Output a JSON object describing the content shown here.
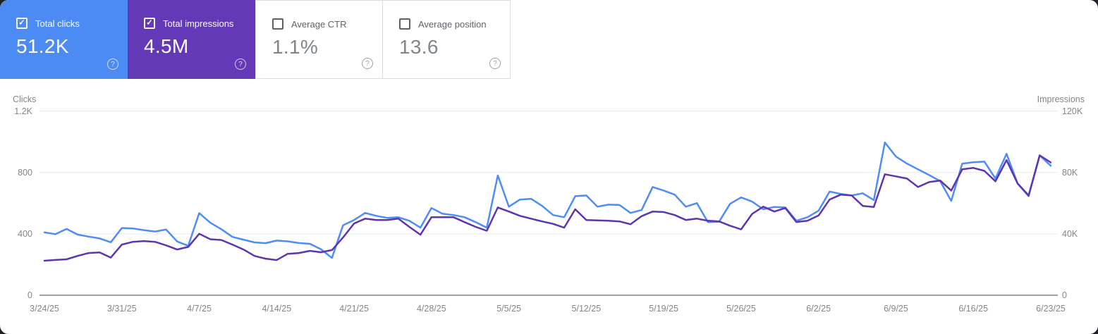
{
  "cards": [
    {
      "label": "Total clicks",
      "value": "51.2K",
      "checked": true
    },
    {
      "label": "Total impressions",
      "value": "4.5M",
      "checked": true
    },
    {
      "label": "Average CTR",
      "value": "1.1%",
      "checked": false
    },
    {
      "label": "Average position",
      "value": "13.6",
      "checked": false
    }
  ],
  "icons": {
    "check": "✓",
    "help": "?"
  },
  "colors": {
    "clicks_card_blue": "#4d8bf4",
    "impressions_card_purple": "#6438b6",
    "clicks_line": "#4e8cf6",
    "impressions_line": "#5e35b1",
    "grid": "#e9eaec",
    "axis": "#9aa0a6",
    "tick_text": "#80868b"
  },
  "chart_data": {
    "type": "line",
    "x_unit": "day",
    "x_range": [
      "3/24/25",
      "6/23/25"
    ],
    "x_tick_labels": [
      "3/24/25",
      "3/31/25",
      "4/7/25",
      "4/14/25",
      "4/21/25",
      "4/28/25",
      "5/5/25",
      "5/12/25",
      "5/19/25",
      "5/26/25",
      "6/2/25",
      "6/9/25",
      "6/16/25",
      "6/23/25"
    ],
    "left_axis": {
      "label": "Clicks",
      "range": [
        0,
        1200
      ],
      "ticks": [
        0,
        400,
        800,
        1200
      ],
      "tick_labels": [
        "0",
        "400",
        "800",
        "1.2K"
      ]
    },
    "right_axis": {
      "label": "Impressions",
      "range": [
        0,
        120000
      ],
      "ticks": [
        0,
        40000,
        80000,
        120000
      ],
      "tick_labels": [
        "0",
        "40K",
        "80K",
        "120K"
      ]
    },
    "grid": "horizontal",
    "legend": "none",
    "series": [
      {
        "name": "Total clicks",
        "axis": "left",
        "color": "#4e8cf6",
        "values": [
          410,
          398,
          432,
          395,
          382,
          370,
          345,
          438,
          435,
          424,
          415,
          428,
          350,
          322,
          535,
          472,
          430,
          380,
          362,
          344,
          339,
          356,
          351,
          340,
          335,
          300,
          243,
          455,
          490,
          536,
          517,
          504,
          508,
          485,
          440,
          568,
          531,
          522,
          508,
          476,
          440,
          780,
          577,
          623,
          628,
          582,
          522,
          508,
          645,
          650,
          577,
          590,
          588,
          536,
          555,
          705,
          682,
          655,
          577,
          600,
          476,
          478,
          595,
          637,
          610,
          560,
          575,
          572,
          485,
          508,
          550,
          675,
          660,
          650,
          664,
          620,
          995,
          903,
          857,
          820,
          783,
          743,
          614,
          857,
          866,
          870,
          760,
          921,
          728,
          645,
          911,
          843
        ]
      },
      {
        "name": "Total impressions",
        "axis": "right",
        "color": "#5e35b1",
        "values": [
          22500,
          23000,
          23400,
          25600,
          27500,
          27900,
          24500,
          33000,
          34800,
          35300,
          34800,
          32500,
          29800,
          31500,
          40000,
          36500,
          36000,
          33000,
          29800,
          25600,
          23800,
          22900,
          27000,
          27500,
          28900,
          28000,
          29400,
          37600,
          46700,
          49900,
          49000,
          49000,
          49900,
          44500,
          39400,
          50800,
          50800,
          50800,
          47600,
          44500,
          42000,
          57200,
          54500,
          51700,
          49900,
          48100,
          46500,
          44000,
          56000,
          49000,
          48800,
          48500,
          48100,
          46200,
          51500,
          54500,
          54200,
          52200,
          49000,
          49900,
          48500,
          48100,
          45300,
          42900,
          53000,
          57700,
          54500,
          56800,
          47700,
          48500,
          51900,
          62300,
          65500,
          65000,
          58200,
          57500,
          78800,
          77400,
          76000,
          70500,
          73700,
          74700,
          68200,
          82000,
          82900,
          81000,
          74200,
          88000,
          72800,
          65000,
          91100,
          86500
        ]
      }
    ]
  }
}
